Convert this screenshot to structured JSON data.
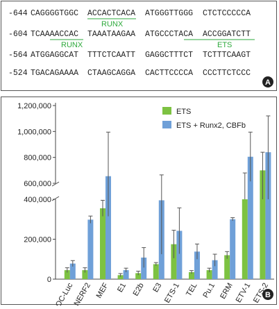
{
  "panel_a": {
    "rows": [
      {
        "pos": "-644",
        "groups": [
          "CAGGGGTGGC",
          "ACCACTCACA",
          "ATGGGTTGGG",
          "CTCTCCCCCA"
        ]
      },
      {
        "pos": "-604",
        "groups": [
          "TCAAAACCAC",
          "TAAATAAGAA",
          "ATGCCCTACA",
          "ACCGGATCTT"
        ]
      },
      {
        "pos": "-564",
        "groups": [
          "ATGGAGGCAT",
          "TTTCTCAATT",
          "GAGGCTTTCT",
          "TCTTTCAAGT"
        ]
      },
      {
        "pos": "-524",
        "groups": [
          "TGACAGAAAA",
          "CTAAGCAGGA",
          "CACTTCCCCA",
          "CCCTTCTCCC"
        ]
      }
    ],
    "motifs": [
      {
        "label": "RUNX"
      },
      {
        "label": "RUNX"
      },
      {
        "label": "ETS"
      }
    ],
    "badge": "A"
  },
  "chart_data": {
    "type": "bar",
    "badge": "B",
    "categories": [
      "OC-Luc",
      "NERF2",
      "MEF",
      "E1",
      "E2b",
      "E3",
      "ETS-1",
      "TEL",
      "Pu.1",
      "ERM",
      "ETV-1",
      "ETS-2"
    ],
    "series": [
      {
        "name": "ETS",
        "color": "#7dc242",
        "values": [
          45000,
          45000,
          355000,
          20000,
          30000,
          75000,
          175000,
          35000,
          45000,
          120000,
          570000,
          700000
        ],
        "errors": [
          12000,
          12000,
          40000,
          8000,
          10000,
          8000,
          70000,
          8000,
          10000,
          18000,
          110000,
          140000
        ]
      },
      {
        "name": "ETS + Runx2, CBFb",
        "color": "#6fa0d8",
        "values": [
          78000,
          298000,
          655000,
          45000,
          108000,
          395000,
          242000,
          138000,
          95000,
          300000,
          805000,
          840000
        ],
        "errors": [
          15000,
          18000,
          340000,
          10000,
          50000,
          270000,
          115000,
          38000,
          30000,
          8000,
          190000,
          280000
        ]
      }
    ],
    "yticks": [
      0,
      200000,
      400000,
      600000,
      800000,
      1000000,
      1200000
    ],
    "ytick_labels": [
      "0",
      "200,000",
      "400,000",
      "600,000",
      "800,000",
      "1,000,000",
      "1,200,000"
    ],
    "axis_break": [
      400000,
      600000
    ],
    "ylim": [
      0,
      1200000
    ],
    "legend_position": "top-right"
  }
}
